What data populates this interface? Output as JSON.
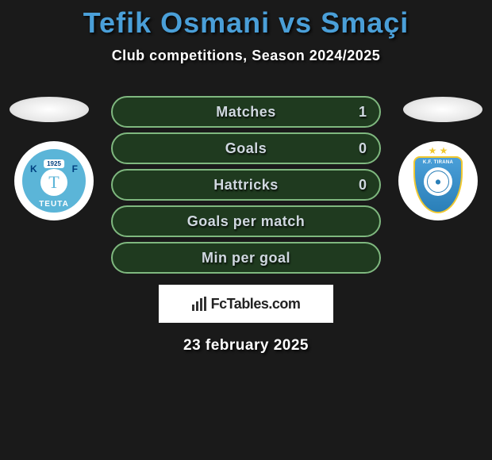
{
  "title": "Tefik Osmani vs Smaçi",
  "subtitle": "Club competitions, Season 2024/2025",
  "date": "23 february 2025",
  "stats": [
    {
      "label": "Matches",
      "right_value": "1"
    },
    {
      "label": "Goals",
      "right_value": "0"
    },
    {
      "label": "Hattricks",
      "right_value": "0"
    },
    {
      "label": "Goals per match",
      "right_value": ""
    },
    {
      "label": "Min per goal",
      "right_value": ""
    }
  ],
  "colors": {
    "background": "#1a1a1a",
    "title_color": "#4a9fd8",
    "row_bg": "#1f3a1f",
    "row_border": "#7fb87f",
    "text_color": "#d0d8e0"
  },
  "badge_left": {
    "name": "Teuta",
    "letter_k": "K",
    "letter_f": "F",
    "year": "1925",
    "center_letter": "T",
    "bottom_text": "TEUTA",
    "bg_color": "#5bb5d8"
  },
  "badge_right": {
    "name": "KF Tirana",
    "stars": "★ ★",
    "top_text": "K.F. TIRANA",
    "shield_color": "#4a9fd8",
    "border_color": "#f0c830"
  },
  "fctables": {
    "text": "FcTables.com"
  }
}
